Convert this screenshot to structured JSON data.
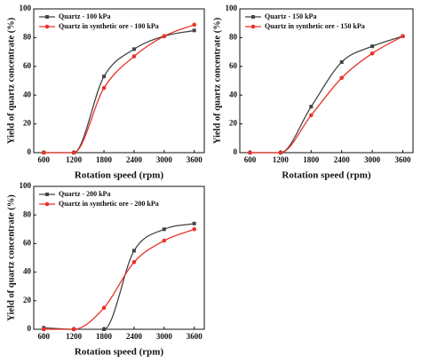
{
  "chart_data": [
    {
      "type": "line",
      "xlabel": "Rotation speed (rpm)",
      "ylabel": "Yield of quartz concentrate (%)",
      "x": [
        600,
        1200,
        1800,
        2400,
        3000,
        3600
      ],
      "series": [
        {
          "name": "Quartz - 100 kPa",
          "color": "#444444",
          "marker": "square",
          "values": [
            0,
            0,
            53,
            72,
            81,
            85
          ]
        },
        {
          "name": "Quartz in synthetic ore - 100 kPa",
          "color": "#e8332a",
          "marker": "circle",
          "values": [
            0,
            0,
            45,
            67,
            81,
            89
          ]
        }
      ],
      "xlim": [
        400,
        3800
      ],
      "ylim": [
        0,
        100
      ],
      "xticks": [
        600,
        1200,
        1800,
        2400,
        3000,
        3600
      ],
      "yticks": [
        0,
        20,
        40,
        60,
        80,
        100
      ],
      "legend": "upper left"
    },
    {
      "type": "line",
      "xlabel": "Rotation speed (rpm)",
      "ylabel": "Yield of quartz concentrate (%)",
      "x": [
        600,
        1200,
        1800,
        2400,
        3000,
        3600
      ],
      "series": [
        {
          "name": "Quartz - 150 kPa",
          "color": "#444444",
          "marker": "square",
          "values": [
            0,
            0,
            32,
            63,
            74,
            81
          ]
        },
        {
          "name": "Quartz in synthetic ore - 150 kPa",
          "color": "#e8332a",
          "marker": "circle",
          "values": [
            0,
            0,
            26,
            52,
            69,
            81
          ]
        }
      ],
      "xlim": [
        400,
        3800
      ],
      "ylim": [
        0,
        100
      ],
      "xticks": [
        600,
        1200,
        1800,
        2400,
        3000,
        3600
      ],
      "yticks": [
        0,
        20,
        40,
        60,
        80,
        100
      ],
      "legend": "upper left"
    },
    {
      "type": "line",
      "xlabel": "Rotation speed (rpm)",
      "ylabel": "Yield of quartz concentrate (%)",
      "x": [
        600,
        1200,
        1800,
        2400,
        3000,
        3600
      ],
      "series": [
        {
          "name": "Quartz - 200 kPa",
          "color": "#444444",
          "marker": "square",
          "values": [
            1,
            0,
            0,
            55,
            70,
            74
          ]
        },
        {
          "name": "Quartz in synthetic ore - 200 kPa",
          "color": "#e8332a",
          "marker": "circle",
          "values": [
            0,
            0,
            15,
            47,
            62,
            70
          ]
        }
      ],
      "xlim": [
        400,
        3800
      ],
      "ylim": [
        0,
        100
      ],
      "xticks": [
        600,
        1200,
        1800,
        2400,
        3000,
        3600
      ],
      "yticks": [
        0,
        20,
        40,
        60,
        80,
        100
      ],
      "legend": "upper left"
    }
  ]
}
